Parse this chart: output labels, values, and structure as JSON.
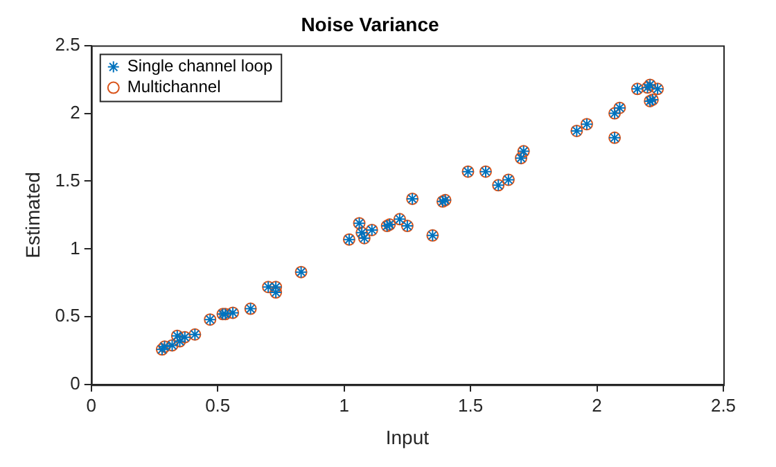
{
  "chart_data": {
    "type": "scatter",
    "title": "Noise Variance",
    "xlabel": "Input",
    "ylabel": "Estimated",
    "xlim": [
      0,
      2.5
    ],
    "ylim": [
      0,
      2.5
    ],
    "xticks": [
      0,
      0.5,
      1,
      1.5,
      2,
      2.5
    ],
    "yticks": [
      0,
      0.5,
      1,
      1.5,
      2,
      2.5
    ],
    "grid": false,
    "legend": "top left",
    "x": [
      0.28,
      0.29,
      0.32,
      0.34,
      0.35,
      0.37,
      0.41,
      0.47,
      0.52,
      0.53,
      0.56,
      0.63,
      0.7,
      0.73,
      0.73,
      0.83,
      1.02,
      1.06,
      1.07,
      1.08,
      1.11,
      1.17,
      1.18,
      1.22,
      1.25,
      1.27,
      1.35,
      1.39,
      1.4,
      1.49,
      1.56,
      1.61,
      1.65,
      1.7,
      1.71,
      1.92,
      1.96,
      2.07,
      2.07,
      2.09,
      2.16,
      2.2,
      2.21,
      2.24,
      2.21,
      2.22
    ],
    "series": [
      {
        "name": "Single channel loop",
        "color": "#0072bd",
        "marker": "cross",
        "values": [
          0.26,
          0.28,
          0.29,
          0.36,
          0.32,
          0.35,
          0.37,
          0.48,
          0.52,
          0.52,
          0.53,
          0.56,
          0.72,
          0.72,
          0.68,
          0.83,
          1.07,
          1.19,
          1.12,
          1.08,
          1.14,
          1.17,
          1.18,
          1.22,
          1.17,
          1.37,
          1.1,
          1.35,
          1.36,
          1.57,
          1.57,
          1.47,
          1.51,
          1.67,
          1.72,
          1.87,
          1.92,
          1.82,
          2.0,
          2.04,
          2.18,
          2.19,
          2.21,
          2.18,
          2.09,
          2.1
        ]
      },
      {
        "name": "Multichannel",
        "color": "#d95319",
        "marker": "circle",
        "values": [
          0.26,
          0.28,
          0.29,
          0.36,
          0.32,
          0.35,
          0.37,
          0.48,
          0.52,
          0.52,
          0.53,
          0.56,
          0.72,
          0.72,
          0.68,
          0.83,
          1.07,
          1.19,
          1.12,
          1.08,
          1.14,
          1.17,
          1.18,
          1.22,
          1.17,
          1.37,
          1.1,
          1.35,
          1.36,
          1.57,
          1.57,
          1.47,
          1.51,
          1.67,
          1.72,
          1.87,
          1.92,
          1.82,
          2.0,
          2.04,
          2.18,
          2.19,
          2.21,
          2.18,
          2.09,
          2.1
        ]
      }
    ]
  }
}
